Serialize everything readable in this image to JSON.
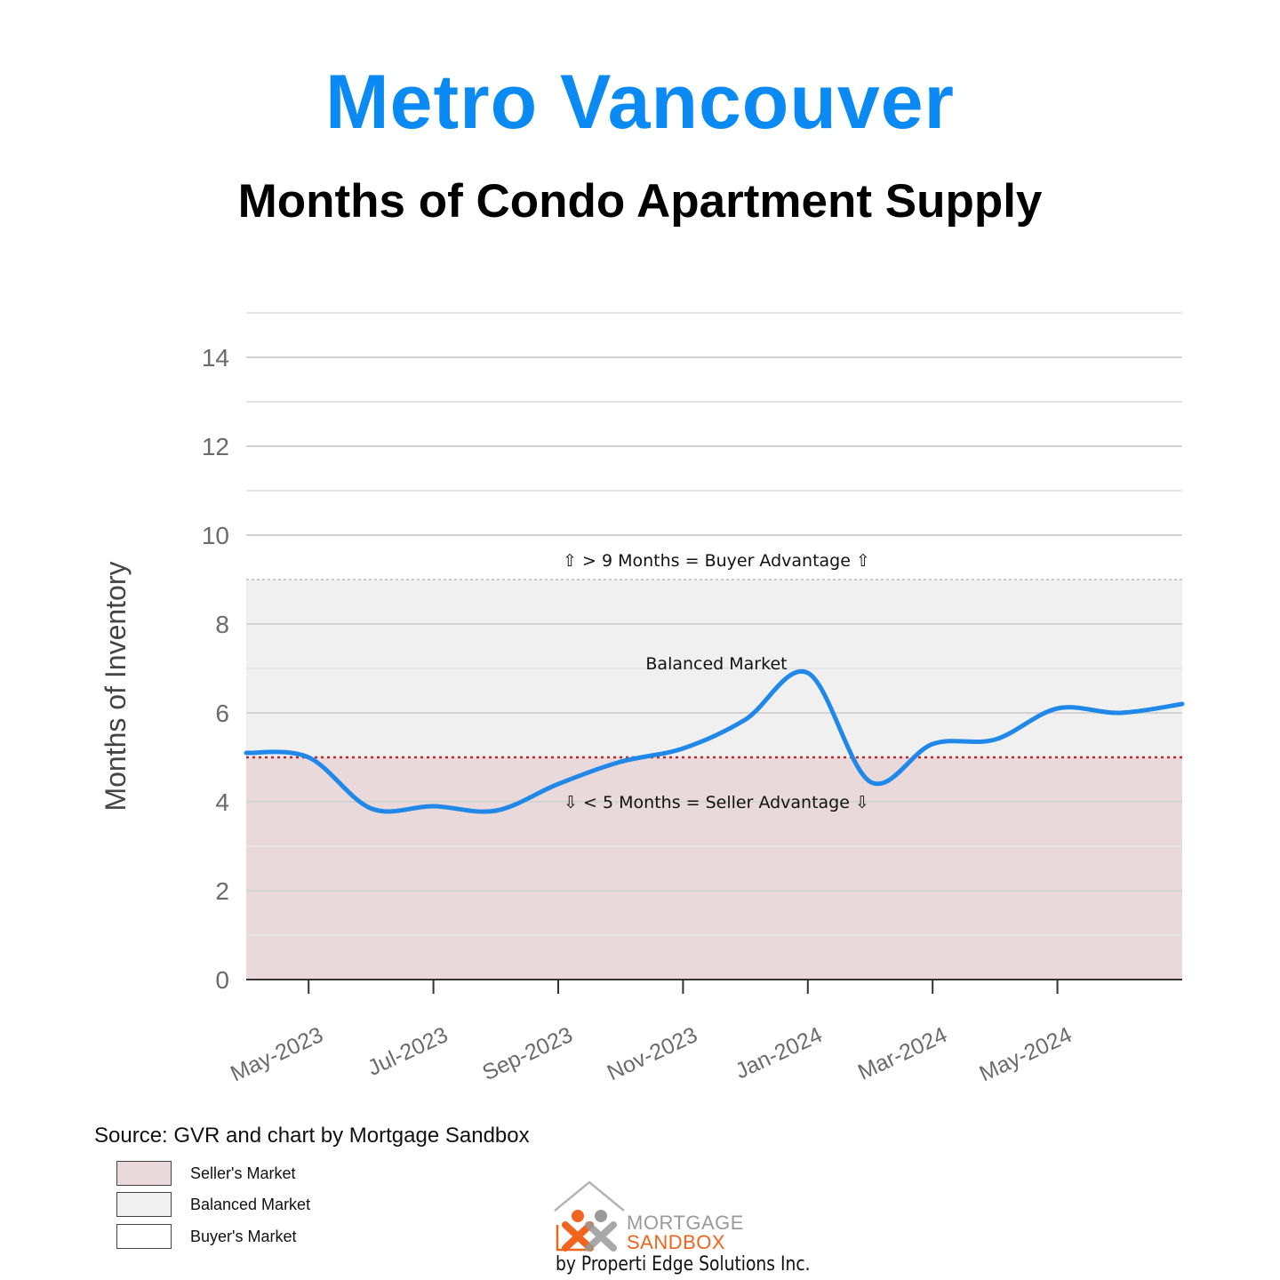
{
  "title": "Metro Vancouver",
  "subtitle": "Months of Condo Apartment Supply",
  "colors": {
    "title": "#0a8af2",
    "line": "#1f88e8",
    "seller_band": "#ead9da",
    "balanced_band": "#f0f0f0",
    "buyer_band": "#ffffff",
    "threshold_line": "#c0282a",
    "grid": "#d2d2d2"
  },
  "chart_data": {
    "type": "line",
    "ylabel": "Months of Inventory",
    "xlabel": "",
    "ylim": [
      0,
      15
    ],
    "xlim": [
      "2023-04",
      "2024-07"
    ],
    "yticks": [
      0,
      2,
      4,
      6,
      8,
      10,
      12,
      14
    ],
    "y_minor_gridlines": [
      1,
      3,
      5,
      7,
      9,
      11,
      13,
      15
    ],
    "grid": true,
    "x_tick_labels": [
      "May-2023",
      "Jul-2023",
      "Sep-2023",
      "Nov-2023",
      "Jan-2024",
      "Mar-2024",
      "May-2024"
    ],
    "x_tick_months": [
      "2023-05",
      "2023-07",
      "2023-09",
      "2023-11",
      "2024-01",
      "2024-03",
      "2024-05"
    ],
    "x": [
      "2023-04",
      "2023-05",
      "2023-06",
      "2023-07",
      "2023-08",
      "2023-09",
      "2023-10",
      "2023-11",
      "2023-12",
      "2024-01",
      "2024-02",
      "2024-03",
      "2024-04",
      "2024-05",
      "2024-06",
      "2024-07"
    ],
    "values": [
      5.1,
      5.0,
      3.85,
      3.9,
      3.8,
      4.4,
      4.9,
      5.2,
      5.85,
      6.9,
      4.45,
      5.3,
      5.4,
      6.1,
      6.0,
      6.2
    ],
    "bands": [
      {
        "name": "Seller's Market",
        "from": 0,
        "to": 5
      },
      {
        "name": "Balanced Market",
        "from": 5,
        "to": 9
      },
      {
        "name": "Buyer's Market",
        "from": 9,
        "to": 15
      }
    ],
    "annotations": {
      "buyer": "⇧ > 9 Months = Buyer Advantage ⇧",
      "balanced": "Balanced Market",
      "seller": "⇩ < 5 Months = Seller Advantage ⇩"
    },
    "legend_position": "bottom-left"
  },
  "source": "Source: GVR and chart by Mortgage Sandbox",
  "legend": [
    {
      "label": "Seller's Market",
      "color": "#ead9da"
    },
    {
      "label": "Balanced Market",
      "color": "#f0f0f0"
    },
    {
      "label": "Buyer's Market",
      "color": "#ffffff"
    }
  ],
  "logo": {
    "word1": "MORTGAGE",
    "word2": "SANDBOX",
    "tagline": "by Properti Edge Solutions Inc.",
    "gray": "#9a9a9a",
    "orange": "#f0641e"
  }
}
